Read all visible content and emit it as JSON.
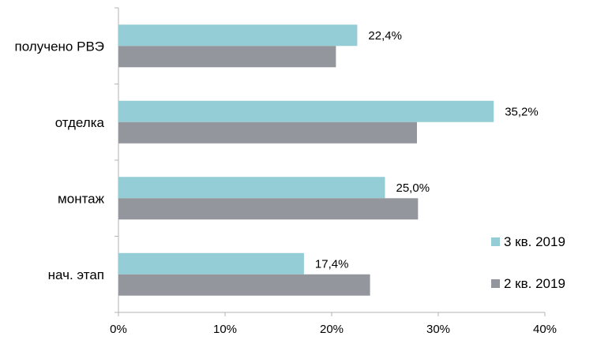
{
  "chart_data": {
    "type": "bar",
    "orientation": "horizontal",
    "categories": [
      "получено РВЭ",
      "отделка",
      "монтаж",
      "нач. этап"
    ],
    "series": [
      {
        "name": "3 кв. 2019",
        "color": "#94cdd6",
        "values": [
          22.4,
          35.2,
          25.0,
          17.4
        ],
        "data_labels": [
          "22,4%",
          "35,2%",
          "25,0%",
          "17,4%"
        ]
      },
      {
        "name": "2 кв. 2019",
        "color": "#93979d",
        "values": [
          20.4,
          28.0,
          28.1,
          23.6
        ]
      }
    ],
    "xlim": [
      0,
      40
    ],
    "x_ticks": [
      0,
      10,
      20,
      30,
      40
    ],
    "x_tick_labels": [
      "0%",
      "10%",
      "20%",
      "30%",
      "40%"
    ],
    "grid": false,
    "legend_position": "right"
  }
}
